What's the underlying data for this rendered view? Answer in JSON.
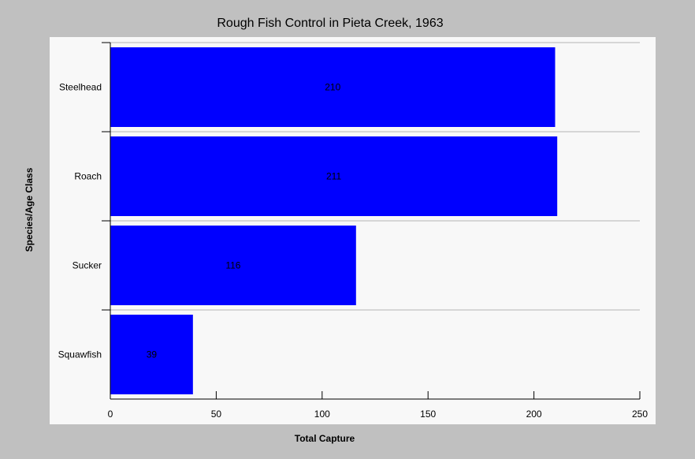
{
  "chart_data": {
    "type": "bar",
    "orientation": "horizontal",
    "title": "Rough Fish Control in Pieta Creek, 1963",
    "xlabel": "Total Capture",
    "ylabel": "Species/Age Class",
    "categories": [
      "Steelhead",
      "Roach",
      "Sucker",
      "Squawfish"
    ],
    "values": [
      210,
      211,
      116,
      39
    ],
    "xlim": [
      0,
      250
    ],
    "xticks": [
      0,
      50,
      100,
      150,
      200,
      250
    ],
    "bar_color": "#0000ff",
    "grid": "horizontal category separators",
    "legend": "none"
  },
  "colors": {
    "background": "#c0c0c0",
    "plot_background": "#f8f8f8",
    "bar": "#0000ff"
  }
}
